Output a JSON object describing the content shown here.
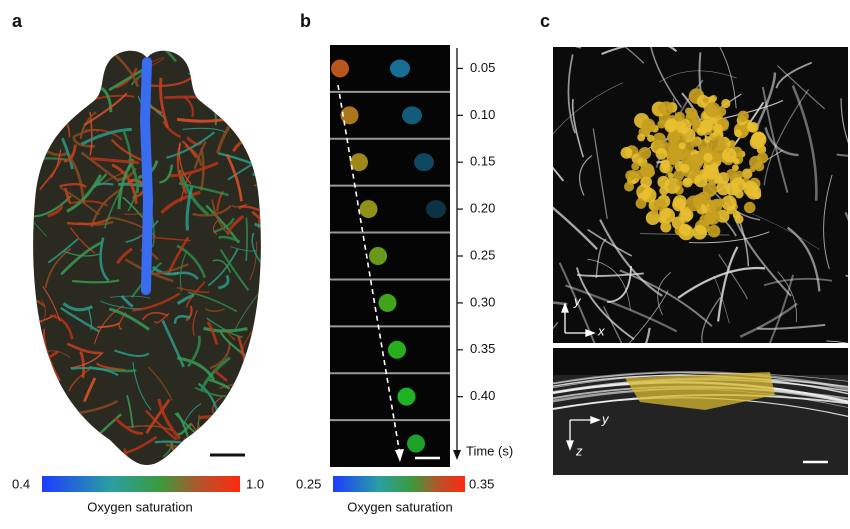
{
  "panels": {
    "a": {
      "label": "a",
      "colorbar": {
        "min": "0.4",
        "max": "1.0",
        "title": "Oxygen saturation"
      }
    },
    "b": {
      "label": "b",
      "time_ticks": [
        "0.05",
        "0.10",
        "0.15",
        "0.20",
        "0.25",
        "0.30",
        "0.35",
        "0.40"
      ],
      "time_axis_label": "Time (s)",
      "colorbar": {
        "min": "0.25",
        "max": "0.35",
        "title": "Oxygen saturation"
      }
    },
    "c": {
      "label": "c",
      "top_axes": [
        "y",
        "x"
      ],
      "bottom_axes": [
        "y",
        "z"
      ]
    }
  }
}
